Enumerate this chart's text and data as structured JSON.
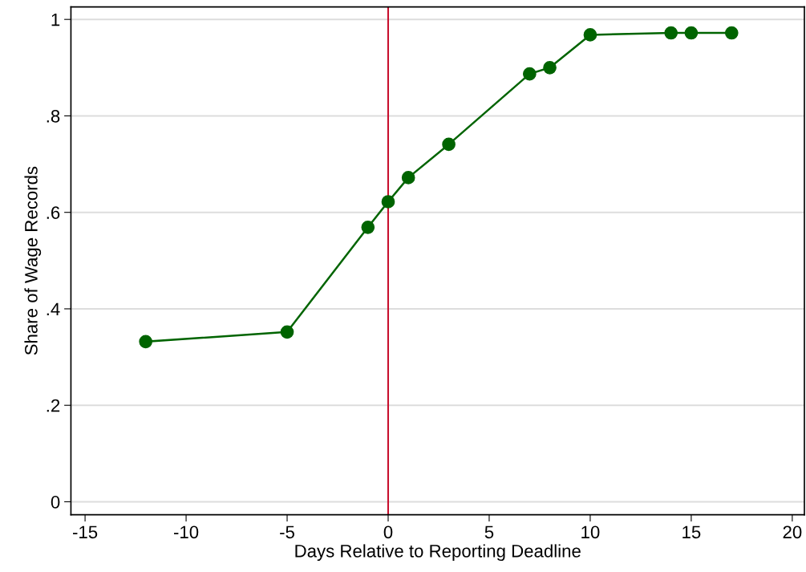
{
  "chart_data": {
    "type": "line",
    "xlabel": "Days Relative to Reporting Deadline",
    "ylabel": "Share of Wage Records",
    "x": [
      -12,
      -5,
      -1,
      0,
      1,
      3,
      7,
      8,
      10,
      14,
      15,
      17
    ],
    "series": [
      {
        "color": "#006400",
        "values": [
          0.332,
          0.352,
          0.569,
          0.622,
          0.672,
          0.741,
          0.887,
          0.9,
          0.968,
          0.972,
          0.972,
          0.972
        ]
      }
    ],
    "marker": "circle",
    "line_style": "solid",
    "xlim": [
      -15.7,
      20.6
    ],
    "ylim": [
      -0.027,
      1.026
    ],
    "xticks": [
      -15,
      -10,
      -5,
      0,
      5,
      10,
      15,
      20
    ],
    "yticks": [
      {
        "value": 0,
        "label": "0"
      },
      {
        "value": 0.2,
        "label": ".2"
      },
      {
        "value": 0.4,
        "label": ".4"
      },
      {
        "value": 0.6,
        "label": ".6"
      },
      {
        "value": 0.8,
        "label": ".8"
      },
      {
        "value": 1,
        "label": "1"
      }
    ],
    "grid": "y",
    "ref_lines": [
      {
        "axis": "x",
        "value": 0,
        "color": "#c8102e"
      }
    ]
  }
}
